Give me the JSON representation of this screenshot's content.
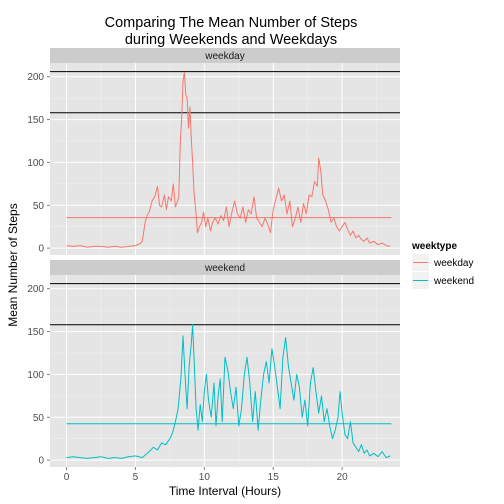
{
  "chart_data": {
    "type": "line",
    "title_lines": [
      "Comparing The Mean Number of Steps",
      "during Weekends and Weekdays"
    ],
    "xlabel": "Time Interval (Hours)",
    "ylabel": "Mean Number of Steps",
    "xlim": [
      -1.2,
      24.2
    ],
    "ylim": [
      -8,
      216
    ],
    "x_ticks": [
      0,
      5,
      10,
      15,
      20
    ],
    "y_ticks": [
      0,
      50,
      100,
      150,
      200
    ],
    "grid": true,
    "legend": {
      "title": "weektype",
      "position": "right",
      "entries": [
        {
          "name": "weekday",
          "color": "#F8766D"
        },
        {
          "name": "weekend",
          "color": "#00BFC4"
        }
      ]
    },
    "reference_lines": [
      206,
      158
    ],
    "panels": [
      {
        "name": "weekday",
        "color": "#F8766D",
        "mean_line": 35.6,
        "series": [
          [
            0,
            3
          ],
          [
            0.5,
            2
          ],
          [
            1,
            3
          ],
          [
            1.5,
            1
          ],
          [
            2,
            2
          ],
          [
            2.5,
            2
          ],
          [
            3,
            1
          ],
          [
            3.5,
            2
          ],
          [
            4,
            1
          ],
          [
            4.5,
            2
          ],
          [
            5,
            3
          ],
          [
            5.3,
            5
          ],
          [
            5.5,
            8
          ],
          [
            5.7,
            30
          ],
          [
            5.85,
            38
          ],
          [
            6,
            42
          ],
          [
            6.2,
            55
          ],
          [
            6.4,
            60
          ],
          [
            6.6,
            72
          ],
          [
            6.75,
            50
          ],
          [
            6.9,
            48
          ],
          [
            7.1,
            62
          ],
          [
            7.25,
            45
          ],
          [
            7.4,
            60
          ],
          [
            7.6,
            55
          ],
          [
            7.75,
            75
          ],
          [
            7.9,
            48
          ],
          [
            8.05,
            55
          ],
          [
            8.15,
            60
          ],
          [
            8.25,
            120
          ],
          [
            8.35,
            150
          ],
          [
            8.45,
            195
          ],
          [
            8.55,
            205
          ],
          [
            8.65,
            180
          ],
          [
            8.75,
            175
          ],
          [
            8.85,
            140
          ],
          [
            8.95,
            165
          ],
          [
            9.05,
            130
          ],
          [
            9.15,
            100
          ],
          [
            9.25,
            65
          ],
          [
            9.4,
            40
          ],
          [
            9.5,
            18
          ],
          [
            9.65,
            25
          ],
          [
            9.8,
            30
          ],
          [
            9.95,
            42
          ],
          [
            10.1,
            25
          ],
          [
            10.25,
            35
          ],
          [
            10.45,
            20
          ],
          [
            10.6,
            30
          ],
          [
            10.8,
            35
          ],
          [
            11,
            28
          ],
          [
            11.2,
            38
          ],
          [
            11.4,
            32
          ],
          [
            11.6,
            48
          ],
          [
            11.8,
            25
          ],
          [
            12,
            42
          ],
          [
            12.2,
            55
          ],
          [
            12.4,
            40
          ],
          [
            12.6,
            35
          ],
          [
            12.8,
            48
          ],
          [
            13,
            30
          ],
          [
            13.2,
            45
          ],
          [
            13.4,
            40
          ],
          [
            13.6,
            60
          ],
          [
            13.8,
            35
          ],
          [
            14,
            30
          ],
          [
            14.2,
            25
          ],
          [
            14.4,
            35
          ],
          [
            14.6,
            28
          ],
          [
            14.8,
            18
          ],
          [
            15,
            45
          ],
          [
            15.2,
            58
          ],
          [
            15.4,
            70
          ],
          [
            15.6,
            55
          ],
          [
            15.8,
            62
          ],
          [
            16,
            40
          ],
          [
            16.2,
            55
          ],
          [
            16.4,
            25
          ],
          [
            16.6,
            35
          ],
          [
            16.8,
            48
          ],
          [
            17,
            30
          ],
          [
            17.2,
            52
          ],
          [
            17.4,
            40
          ],
          [
            17.6,
            62
          ],
          [
            17.8,
            60
          ],
          [
            18,
            78
          ],
          [
            18.2,
            72
          ],
          [
            18.3,
            105
          ],
          [
            18.45,
            90
          ],
          [
            18.6,
            62
          ],
          [
            18.8,
            55
          ],
          [
            19,
            45
          ],
          [
            19.2,
            30
          ],
          [
            19.4,
            35
          ],
          [
            19.6,
            25
          ],
          [
            19.8,
            20
          ],
          [
            20,
            25
          ],
          [
            20.2,
            30
          ],
          [
            20.4,
            22
          ],
          [
            20.6,
            15
          ],
          [
            20.8,
            20
          ],
          [
            21,
            12
          ],
          [
            21.2,
            15
          ],
          [
            21.4,
            10
          ],
          [
            21.6,
            8
          ],
          [
            21.8,
            12
          ],
          [
            22,
            6
          ],
          [
            22.3,
            8
          ],
          [
            22.6,
            4
          ],
          [
            22.9,
            6
          ],
          [
            23.2,
            3
          ],
          [
            23.5,
            2
          ]
        ]
      },
      {
        "name": "weekend",
        "color": "#00BFC4",
        "mean_line": 42.5,
        "series": [
          [
            0,
            3
          ],
          [
            0.5,
            4
          ],
          [
            1,
            3
          ],
          [
            1.5,
            2
          ],
          [
            2,
            3
          ],
          [
            2.5,
            4
          ],
          [
            3,
            2
          ],
          [
            3.5,
            3
          ],
          [
            4,
            2
          ],
          [
            4.5,
            4
          ],
          [
            5,
            5
          ],
          [
            5.5,
            3
          ],
          [
            6,
            10
          ],
          [
            6.3,
            15
          ],
          [
            6.6,
            12
          ],
          [
            6.9,
            20
          ],
          [
            7.2,
            18
          ],
          [
            7.5,
            25
          ],
          [
            7.7,
            32
          ],
          [
            7.9,
            45
          ],
          [
            8.1,
            60
          ],
          [
            8.3,
            95
          ],
          [
            8.45,
            145
          ],
          [
            8.6,
            100
          ],
          [
            8.75,
            60
          ],
          [
            8.9,
            110
          ],
          [
            9.05,
            135
          ],
          [
            9.15,
            158
          ],
          [
            9.25,
            120
          ],
          [
            9.4,
            60
          ],
          [
            9.55,
            35
          ],
          [
            9.7,
            65
          ],
          [
            9.85,
            45
          ],
          [
            10,
            80
          ],
          [
            10.15,
            100
          ],
          [
            10.3,
            70
          ],
          [
            10.5,
            50
          ],
          [
            10.7,
            90
          ],
          [
            10.85,
            40
          ],
          [
            11,
            75
          ],
          [
            11.15,
            95
          ],
          [
            11.3,
            45
          ],
          [
            11.5,
            120
          ],
          [
            11.7,
            105
          ],
          [
            11.9,
            80
          ],
          [
            12.1,
            60
          ],
          [
            12.3,
            85
          ],
          [
            12.5,
            40
          ],
          [
            12.7,
            60
          ],
          [
            12.9,
            100
          ],
          [
            13.1,
            120
          ],
          [
            13.3,
            90
          ],
          [
            13.5,
            45
          ],
          [
            13.7,
            80
          ],
          [
            13.9,
            35
          ],
          [
            14.1,
            70
          ],
          [
            14.3,
            100
          ],
          [
            14.5,
            115
          ],
          [
            14.7,
            90
          ],
          [
            14.9,
            130
          ],
          [
            15.1,
            110
          ],
          [
            15.3,
            85
          ],
          [
            15.5,
            60
          ],
          [
            15.7,
            120
          ],
          [
            15.9,
            143
          ],
          [
            16.1,
            110
          ],
          [
            16.3,
            90
          ],
          [
            16.5,
            70
          ],
          [
            16.7,
            100
          ],
          [
            16.9,
            85
          ],
          [
            17.1,
            50
          ],
          [
            17.3,
            70
          ],
          [
            17.5,
            40
          ],
          [
            17.7,
            90
          ],
          [
            17.9,
            108
          ],
          [
            18.1,
            80
          ],
          [
            18.3,
            55
          ],
          [
            18.5,
            75
          ],
          [
            18.7,
            45
          ],
          [
            18.9,
            60
          ],
          [
            19.1,
            40
          ],
          [
            19.3,
            25
          ],
          [
            19.5,
            35
          ],
          [
            19.7,
            50
          ],
          [
            19.85,
            80
          ],
          [
            20,
            55
          ],
          [
            20.2,
            30
          ],
          [
            20.4,
            25
          ],
          [
            20.6,
            45
          ],
          [
            20.8,
            20
          ],
          [
            21,
            15
          ],
          [
            21.2,
            10
          ],
          [
            21.4,
            18
          ],
          [
            21.6,
            8
          ],
          [
            21.8,
            12
          ],
          [
            22,
            5
          ],
          [
            22.3,
            8
          ],
          [
            22.6,
            4
          ],
          [
            22.9,
            10
          ],
          [
            23.2,
            3
          ],
          [
            23.5,
            5
          ]
        ]
      }
    ]
  }
}
